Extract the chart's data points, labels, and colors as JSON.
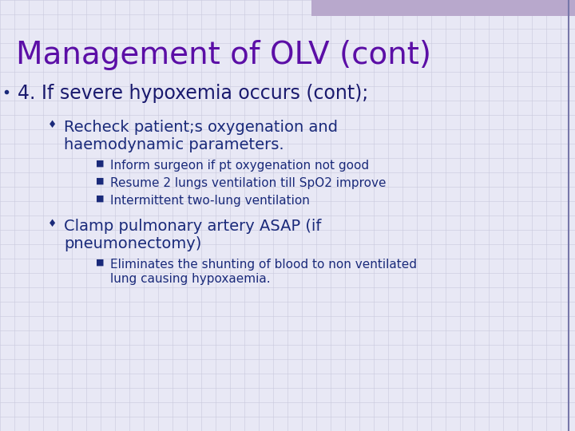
{
  "title": "Management of OLV (cont)",
  "title_color": "#5B0EA6",
  "title_fontsize": 28,
  "background_color": "#E8E8F5",
  "grid_color": "#C8C8DD",
  "header_bar_color": "#B8A8CC",
  "right_border_color": "#7777AA",
  "section_heading": "4. If severe hypoxemia occurs (cont);",
  "section_heading_color": "#1A1A6E",
  "section_heading_fontsize": 17,
  "bullet_color": "#1A2A7A",
  "bullet_diamond": "♦",
  "bullet_square": "■",
  "bullet1_line1": "Recheck patient;s oxygenation and",
  "bullet1_line2": "haemodynamic parameters.",
  "bullet1_fontsize": 14,
  "sub1": [
    "Inform surgeon if pt oxygenation not good",
    "Resume 2 lungs ventilation till SpO2 improve",
    "Intermittent two-lung ventilation"
  ],
  "bullet2_line1": "Clamp pulmonary artery ASAP (if",
  "bullet2_line2": "pneumonectomy)",
  "bullet2_fontsize": 14,
  "sub2_line1": "Eliminates the shunting of blood to non ventilated",
  "sub2_line2": "lung causing hypoxaemia.",
  "sub_bullet_fontsize": 11
}
